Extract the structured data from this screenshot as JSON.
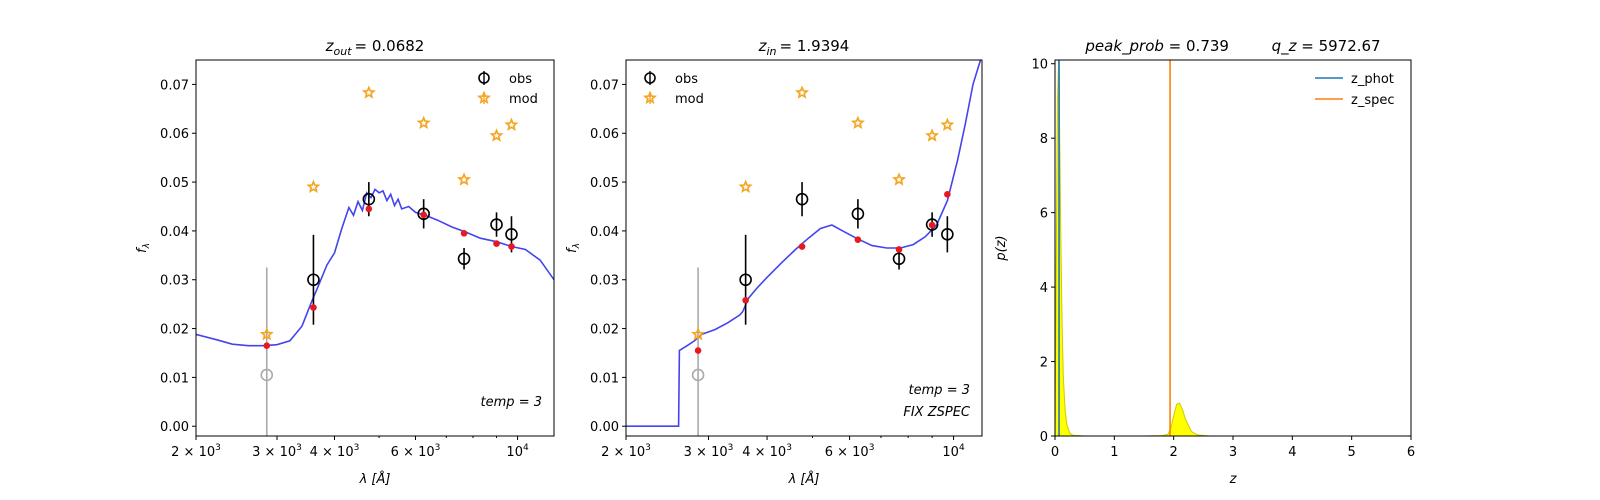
{
  "chart_data": [
    {
      "type": "scatter",
      "title_main": "z",
      "title_sub": "out",
      "title_value": "= 0.0682",
      "xlabel": "λ [Å]",
      "ylabel_main": "f",
      "ylabel_sub": "λ",
      "xscale": "log",
      "xlim": [
        2000,
        12000
      ],
      "ylim": [
        -0.002,
        0.075
      ],
      "x_ticks": [
        {
          "value": 2000,
          "base": "2 × 10",
          "exp": "3"
        },
        {
          "value": 3000,
          "base": "3 × 10",
          "exp": "3"
        },
        {
          "value": 4000,
          "base": "4 × 10",
          "exp": "3"
        },
        {
          "value": 6000,
          "base": "6 × 10",
          "exp": "3"
        },
        {
          "value": 10000,
          "base": "10",
          "exp": "4"
        }
      ],
      "y_ticks": [
        {
          "value": 0,
          "label": "0.00"
        },
        {
          "value": 0.01,
          "label": "0.01"
        },
        {
          "value": 0.02,
          "label": "0.02"
        },
        {
          "value": 0.03,
          "label": "0.03"
        },
        {
          "value": 0.04,
          "label": "0.04"
        },
        {
          "value": 0.05,
          "label": "0.05"
        },
        {
          "value": 0.06,
          "label": "0.06"
        },
        {
          "value": 0.07,
          "label": "0.07"
        }
      ],
      "legend": [
        {
          "label": "obs",
          "marker": "circle-err"
        },
        {
          "label": "mod",
          "marker": "star"
        }
      ],
      "legend_position": "top-right",
      "annotations": [
        "temp = 3"
      ],
      "obs": [
        {
          "x": 2850,
          "y": 0.0105,
          "err": 0.022,
          "color": "#aaaaaa"
        },
        {
          "x": 3600,
          "y": 0.03,
          "err": 0.0092,
          "color": "#000000"
        },
        {
          "x": 4750,
          "y": 0.0465,
          "err": 0.0035,
          "color": "#000000"
        },
        {
          "x": 6250,
          "y": 0.0435,
          "err": 0.003,
          "color": "#000000"
        },
        {
          "x": 7650,
          "y": 0.0343,
          "err": 0.0022,
          "color": "#000000"
        },
        {
          "x": 9000,
          "y": 0.0413,
          "err": 0.0025,
          "color": "#000000"
        },
        {
          "x": 9700,
          "y": 0.0393,
          "err": 0.0037,
          "color": "#000000"
        }
      ],
      "mod": [
        {
          "x": 2850,
          "y": 0.0188
        },
        {
          "x": 3600,
          "y": 0.049
        },
        {
          "x": 4750,
          "y": 0.0683
        },
        {
          "x": 6250,
          "y": 0.0621
        },
        {
          "x": 7650,
          "y": 0.0505
        },
        {
          "x": 9000,
          "y": 0.0595
        },
        {
          "x": 9700,
          "y": 0.0617
        }
      ],
      "model_points": [
        {
          "x": 2850,
          "y": 0.0165
        },
        {
          "x": 3600,
          "y": 0.0243
        },
        {
          "x": 4750,
          "y": 0.0445
        },
        {
          "x": 6250,
          "y": 0.0433
        },
        {
          "x": 7650,
          "y": 0.0395
        },
        {
          "x": 9000,
          "y": 0.0374
        },
        {
          "x": 9700,
          "y": 0.0368
        }
      ],
      "curve": {
        "color": "#3a3aee",
        "x": [
          2000,
          2200,
          2400,
          2600,
          2800,
          3000,
          3200,
          3400,
          3550,
          3700,
          3850,
          4000,
          4150,
          4300,
          4400,
          4500,
          4600,
          4700,
          4800,
          4900,
          5000,
          5100,
          5200,
          5300,
          5400,
          5500,
          5600,
          5800,
          6000,
          6300,
          6700,
          7200,
          7700,
          8300,
          9000,
          9700,
          10400,
          11200,
          12000
        ],
        "y": [
          0.0188,
          0.0178,
          0.0168,
          0.0165,
          0.0165,
          0.0167,
          0.0175,
          0.0205,
          0.025,
          0.029,
          0.033,
          0.0355,
          0.0405,
          0.0448,
          0.0432,
          0.046,
          0.0442,
          0.0478,
          0.0468,
          0.0485,
          0.0478,
          0.0482,
          0.0462,
          0.0475,
          0.0452,
          0.0465,
          0.0445,
          0.045,
          0.0438,
          0.0432,
          0.0422,
          0.0408,
          0.0398,
          0.0385,
          0.0378,
          0.0368,
          0.0362,
          0.034,
          0.03
        ]
      }
    },
    {
      "type": "scatter",
      "title_main": "z",
      "title_sub": "in",
      "title_value": "= 1.9394",
      "xlabel": "λ [Å]",
      "ylabel_main": "f",
      "ylabel_sub": "λ",
      "xscale": "log",
      "xlim": [
        2000,
        11500
      ],
      "ylim": [
        -0.002,
        0.075
      ],
      "x_ticks": [
        {
          "value": 2000,
          "base": "2 × 10",
          "exp": "3"
        },
        {
          "value": 3000,
          "base": "3 × 10",
          "exp": "3"
        },
        {
          "value": 4000,
          "base": "4 × 10",
          "exp": "3"
        },
        {
          "value": 6000,
          "base": "6 × 10",
          "exp": "3"
        },
        {
          "value": 10000,
          "base": "10",
          "exp": "4"
        }
      ],
      "y_ticks": [
        {
          "value": 0,
          "label": "0.00"
        },
        {
          "value": 0.01,
          "label": "0.01"
        },
        {
          "value": 0.02,
          "label": "0.02"
        },
        {
          "value": 0.03,
          "label": "0.03"
        },
        {
          "value": 0.04,
          "label": "0.04"
        },
        {
          "value": 0.05,
          "label": "0.05"
        },
        {
          "value": 0.06,
          "label": "0.06"
        },
        {
          "value": 0.07,
          "label": "0.07"
        }
      ],
      "legend": [
        {
          "label": "obs",
          "marker": "circle-err"
        },
        {
          "label": "mod",
          "marker": "star"
        }
      ],
      "legend_position": "top-left",
      "annotations": [
        "temp = 3",
        "FIX ZSPEC"
      ],
      "obs": [
        {
          "x": 2850,
          "y": 0.0105,
          "err": 0.022,
          "color": "#aaaaaa"
        },
        {
          "x": 3600,
          "y": 0.03,
          "err": 0.0092,
          "color": "#000000"
        },
        {
          "x": 4750,
          "y": 0.0465,
          "err": 0.0035,
          "color": "#000000"
        },
        {
          "x": 6250,
          "y": 0.0435,
          "err": 0.003,
          "color": "#000000"
        },
        {
          "x": 7650,
          "y": 0.0343,
          "err": 0.0022,
          "color": "#000000"
        },
        {
          "x": 9000,
          "y": 0.0413,
          "err": 0.0025,
          "color": "#000000"
        },
        {
          "x": 9700,
          "y": 0.0393,
          "err": 0.0037,
          "color": "#000000"
        }
      ],
      "mod": [
        {
          "x": 2850,
          "y": 0.0188
        },
        {
          "x": 3600,
          "y": 0.049
        },
        {
          "x": 4750,
          "y": 0.0683
        },
        {
          "x": 6250,
          "y": 0.0621
        },
        {
          "x": 7650,
          "y": 0.0505
        },
        {
          "x": 9000,
          "y": 0.0595
        },
        {
          "x": 9700,
          "y": 0.0617
        }
      ],
      "model_points": [
        {
          "x": 2850,
          "y": 0.0155
        },
        {
          "x": 3600,
          "y": 0.0258
        },
        {
          "x": 4750,
          "y": 0.0368
        },
        {
          "x": 6250,
          "y": 0.0382
        },
        {
          "x": 7650,
          "y": 0.0362
        },
        {
          "x": 9000,
          "y": 0.0412
        },
        {
          "x": 9700,
          "y": 0.0475
        }
      ],
      "curve": {
        "color": "#3a3aee",
        "x": [
          2000,
          2400,
          2590,
          2600,
          2700,
          2800,
          2900,
          3100,
          3300,
          3500,
          3550,
          3650,
          3800,
          4000,
          4300,
          4600,
          4900,
          5200,
          5500,
          5800,
          6200,
          6700,
          7200,
          7700,
          8200,
          8700,
          9200,
          9700,
          10200,
          10600,
          11000,
          11500
        ],
        "y": [
          0.0,
          0.0,
          0.0,
          0.0155,
          0.0165,
          0.0175,
          0.0188,
          0.0198,
          0.0212,
          0.0228,
          0.0235,
          0.0262,
          0.0282,
          0.0305,
          0.0335,
          0.0362,
          0.0385,
          0.0405,
          0.0412,
          0.04,
          0.0385,
          0.037,
          0.0365,
          0.0365,
          0.0372,
          0.0388,
          0.0412,
          0.0462,
          0.0545,
          0.062,
          0.07,
          0.076
        ]
      }
    },
    {
      "type": "line",
      "title_parts": [
        {
          "text": "peak_prob",
          "italic": true
        },
        {
          "text": " = 0.739      ",
          "italic": false
        },
        {
          "text": "q_z",
          "italic": true
        },
        {
          "text": " = 5972.67",
          "italic": false
        }
      ],
      "xlabel": "z",
      "ylabel": "p(z)",
      "xlim": [
        0,
        6
      ],
      "ylim": [
        0,
        10.1
      ],
      "x_ticks": [
        0,
        1,
        2,
        3,
        4,
        5,
        6
      ],
      "y_ticks": [
        0,
        2,
        4,
        6,
        8,
        10
      ],
      "legend": [
        {
          "label": "z_phot",
          "color": "#1f77b4"
        },
        {
          "label": "z_spec",
          "color": "#ff7f0e"
        }
      ],
      "legend_position": "top-right",
      "z_phot_line": 0.0682,
      "z_spec_line": 1.9394,
      "pdf_fill_color": "#ffff00",
      "pdf": {
        "x": [
          0,
          0.02,
          0.04,
          0.06,
          0.0682,
          0.08,
          0.1,
          0.12,
          0.14,
          0.17,
          0.2,
          0.25,
          0.3,
          0.5,
          1.0,
          1.5,
          1.8,
          1.9,
          1.95,
          2.0,
          2.05,
          2.1,
          2.15,
          2.2,
          2.3,
          2.4,
          2.6,
          3.0,
          4.0,
          5.0
        ],
        "y": [
          0,
          4.5,
          9.0,
          10.1,
          10.1,
          8.0,
          5.2,
          3.0,
          1.6,
          0.7,
          0.3,
          0.08,
          0.02,
          0,
          0,
          0,
          0.01,
          0.04,
          0.2,
          0.55,
          0.85,
          0.88,
          0.7,
          0.45,
          0.12,
          0.03,
          0,
          0,
          0,
          0
        ]
      }
    }
  ]
}
